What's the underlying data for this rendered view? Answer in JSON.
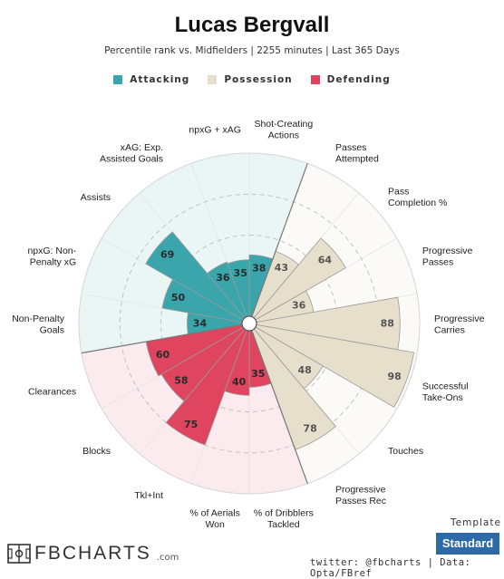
{
  "header": {
    "title": "Lucas Bergvall",
    "subtitle": "Percentile rank vs. Midfielders | 2255 minutes | Last 365 Days"
  },
  "legend": [
    {
      "label": "Attacking",
      "color": "#3aa6ac"
    },
    {
      "label": "Possession",
      "color": "#e6dfcb"
    },
    {
      "label": "Defending",
      "color": "#e0455f"
    }
  ],
  "chart_data": {
    "type": "polar-bar",
    "title": "Lucas Bergvall",
    "rmax": 100,
    "categories": [
      {
        "label": "Shot-Creating\nActions",
        "value": 38,
        "group": "Attacking"
      },
      {
        "label": "Passes\nAttempted",
        "value": 43,
        "group": "Possession"
      },
      {
        "label": "Pass\nCompletion %",
        "value": 64,
        "group": "Possession"
      },
      {
        "label": "Progressive\nPasses",
        "value": 36,
        "group": "Possession"
      },
      {
        "label": "Progressive\nCarries",
        "value": 88,
        "group": "Possession"
      },
      {
        "label": "Successful\nTake-Ons",
        "value": 98,
        "group": "Possession"
      },
      {
        "label": "Touches",
        "value": 48,
        "group": "Possession"
      },
      {
        "label": "Progressive\nPasses Rec",
        "value": 78,
        "group": "Possession"
      },
      {
        "label": "% of Dribblers\nTackled",
        "value": 35,
        "group": "Defending"
      },
      {
        "label": "% of Aerials\nWon",
        "value": 40,
        "group": "Defending"
      },
      {
        "label": "Tkl+Int",
        "value": 75,
        "group": "Defending"
      },
      {
        "label": "Blocks",
        "value": 58,
        "group": "Defending"
      },
      {
        "label": "Clearances",
        "value": 60,
        "group": "Defending"
      },
      {
        "label": "Non-Penalty\nGoals",
        "value": 34,
        "group": "Attacking"
      },
      {
        "label": "npxG: Non-\nPenalty xG",
        "value": 50,
        "group": "Attacking"
      },
      {
        "label": "Assists",
        "value": 69,
        "group": "Attacking"
      },
      {
        "label": "xAG: Exp.\nAssisted Goals",
        "value": 36,
        "group": "Attacking"
      },
      {
        "label": "npxG + xAG",
        "value": 35,
        "group": "Attacking"
      }
    ],
    "group_colors": {
      "Attacking": {
        "bar": "#3aa6ac",
        "bg": "#eaf5f6"
      },
      "Possession": {
        "bar": "#e6dfcb",
        "bg": "#fbfaf7"
      },
      "Defending": {
        "bar": "#e0455f",
        "bg": "#fbeaee"
      }
    },
    "grid": true
  },
  "footer": {
    "template_label": "Template",
    "template_value": "Standard",
    "logo_text": "FBCHARTS",
    "logo_suffix": ".com",
    "credits": "twitter: @fbcharts | Data: Opta/FBref"
  }
}
